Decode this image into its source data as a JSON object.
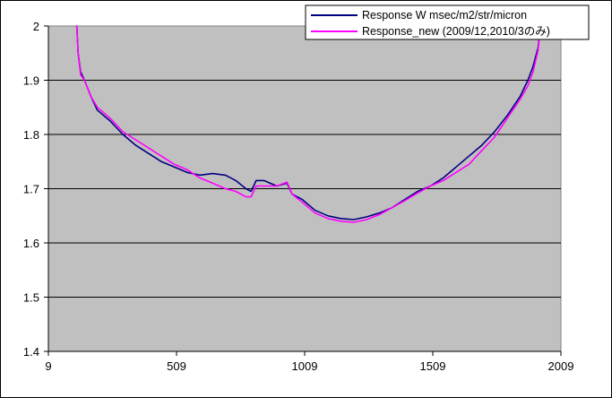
{
  "chart_data": {
    "type": "line",
    "title": "",
    "xlabel": "",
    "ylabel": "",
    "xlim": [
      9,
      2009
    ],
    "ylim": [
      1.4,
      2.0
    ],
    "x_ticks": [
      9,
      509,
      1009,
      1509,
      2009
    ],
    "x_tick_labels": [
      "9",
      "509",
      "1009",
      "1509",
      "2009"
    ],
    "y_ticks": [
      1.4,
      1.5,
      1.6,
      1.7,
      1.8,
      1.9,
      2.0
    ],
    "y_tick_labels": [
      "1.4",
      "1.5",
      "1.6",
      "1.7",
      "1.8",
      "1.9",
      "2"
    ],
    "grid": "horizontal",
    "plot_background": "#c0c0c0",
    "legend_position": "top-right",
    "series": [
      {
        "name": "Response W msec/m2/str/micron",
        "color": "#000080",
        "x": [
          120,
          125,
          135,
          150,
          175,
          200,
          250,
          300,
          350,
          400,
          450,
          500,
          550,
          600,
          650,
          700,
          740,
          780,
          800,
          820,
          850,
          900,
          940,
          960,
          1000,
          1050,
          1100,
          1150,
          1200,
          1250,
          1300,
          1350,
          1400,
          1450,
          1500,
          1550,
          1600,
          1650,
          1700,
          1750,
          1800,
          1850,
          1880,
          1900,
          1920,
          1930
        ],
        "y": [
          2.0,
          1.95,
          1.915,
          1.9,
          1.87,
          1.845,
          1.825,
          1.8,
          1.78,
          1.765,
          1.75,
          1.74,
          1.73,
          1.725,
          1.728,
          1.725,
          1.715,
          1.7,
          1.695,
          1.715,
          1.715,
          1.705,
          1.71,
          1.69,
          1.68,
          1.66,
          1.65,
          1.645,
          1.643,
          1.648,
          1.655,
          1.665,
          1.68,
          1.695,
          1.705,
          1.72,
          1.74,
          1.76,
          1.78,
          1.805,
          1.835,
          1.87,
          1.9,
          1.925,
          1.96,
          2.0
        ]
      },
      {
        "name": "Response_new (2009/12,2010/3のみ)",
        "color": "#ff00ff",
        "x": [
          120,
          125,
          135,
          150,
          175,
          200,
          250,
          300,
          350,
          400,
          450,
          500,
          550,
          600,
          650,
          700,
          740,
          780,
          800,
          820,
          850,
          900,
          940,
          960,
          1000,
          1050,
          1100,
          1150,
          1200,
          1250,
          1300,
          1350,
          1400,
          1450,
          1500,
          1550,
          1600,
          1650,
          1700,
          1750,
          1800,
          1850,
          1880,
          1900,
          1920,
          1930
        ],
        "y": [
          2.0,
          1.95,
          1.91,
          1.9,
          1.87,
          1.85,
          1.83,
          1.805,
          1.79,
          1.775,
          1.76,
          1.745,
          1.735,
          1.72,
          1.71,
          1.7,
          1.695,
          1.685,
          1.685,
          1.705,
          1.705,
          1.705,
          1.712,
          1.69,
          1.675,
          1.655,
          1.645,
          1.64,
          1.638,
          1.643,
          1.652,
          1.665,
          1.678,
          1.692,
          1.705,
          1.715,
          1.73,
          1.745,
          1.77,
          1.795,
          1.83,
          1.865,
          1.89,
          1.915,
          1.955,
          2.0
        ]
      }
    ]
  }
}
